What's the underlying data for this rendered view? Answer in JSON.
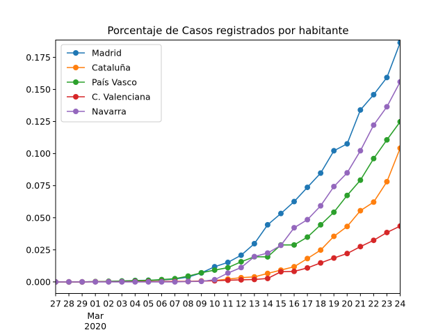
{
  "chart_data": {
    "type": "line",
    "title": "Porcentaje de Casos registrados por habitante",
    "xlabel": "",
    "ylabel": "",
    "x": [
      "2020-02-27",
      "2020-02-28",
      "2020-02-29",
      "2020-03-01",
      "2020-03-02",
      "2020-03-03",
      "2020-03-04",
      "2020-03-05",
      "2020-03-06",
      "2020-03-07",
      "2020-03-08",
      "2020-03-09",
      "2020-03-10",
      "2020-03-11",
      "2020-03-12",
      "2020-03-13",
      "2020-03-14",
      "2020-03-15",
      "2020-03-16",
      "2020-03-17",
      "2020-03-18",
      "2020-03-19",
      "2020-03-20",
      "2020-03-21",
      "2020-03-22",
      "2020-03-23",
      "2020-03-24"
    ],
    "x_tick_labels": [
      "27",
      "28",
      "29",
      "01",
      "02",
      "03",
      "04",
      "05",
      "06",
      "07",
      "08",
      "09",
      "10",
      "11",
      "12",
      "13",
      "14",
      "15",
      "16",
      "17",
      "18",
      "19",
      "20",
      "21",
      "22",
      "23",
      "24"
    ],
    "x_month_label": "Mar",
    "x_year_label": "2020",
    "xlim": [
      "2020-02-27",
      "2020-03-24"
    ],
    "ylim": [
      -0.009,
      0.1885
    ],
    "y_ticks": [
      0.0,
      0.025,
      0.05,
      0.075,
      0.1,
      0.125,
      0.15,
      0.175
    ],
    "y_tick_labels": [
      "0.000",
      "0.025",
      "0.050",
      "0.075",
      "0.100",
      "0.125",
      "0.150",
      "0.175"
    ],
    "legend_position": "top-left",
    "grid": false,
    "series": [
      {
        "name": "Madrid",
        "color": "#1f77b4",
        "values": [
          0.0,
          0.0,
          0.0,
          0.0002,
          0.0004,
          0.0007,
          0.0011,
          0.0013,
          0.0015,
          0.0022,
          0.0038,
          0.007,
          0.0118,
          0.0152,
          0.0208,
          0.0298,
          0.0445,
          0.0533,
          0.0626,
          0.0737,
          0.0848,
          0.1022,
          0.1076,
          0.134,
          0.1459,
          0.1593,
          0.1865
        ]
      },
      {
        "name": "Cataluña",
        "color": "#ff7f0e",
        "values": [
          0.0,
          0.0,
          0.0,
          0.0001,
          0.0002,
          0.0002,
          0.0003,
          0.0003,
          0.0003,
          0.0004,
          0.0005,
          0.0007,
          0.0011,
          0.0022,
          0.0033,
          0.0039,
          0.0066,
          0.0092,
          0.0118,
          0.0182,
          0.0248,
          0.0355,
          0.0432,
          0.0555,
          0.0622,
          0.0781,
          0.1042
        ]
      },
      {
        "name": "País Vasco",
        "color": "#2ca02c",
        "values": [
          0.0,
          0.0,
          0.0,
          0.0002,
          0.0004,
          0.0006,
          0.001,
          0.0012,
          0.0018,
          0.0025,
          0.0045,
          0.0071,
          0.0092,
          0.0111,
          0.0157,
          0.0196,
          0.0195,
          0.0288,
          0.0288,
          0.0349,
          0.0445,
          0.0543,
          0.0674,
          0.0793,
          0.0961,
          0.1107,
          0.1248
        ]
      },
      {
        "name": "C. Valenciana",
        "color": "#d62728",
        "values": [
          0.0,
          0.0,
          0.0,
          0.0001,
          0.0001,
          0.0001,
          0.0002,
          0.0002,
          0.0002,
          0.0003,
          0.0003,
          0.0006,
          0.0009,
          0.0013,
          0.0016,
          0.0019,
          0.0027,
          0.0079,
          0.0082,
          0.0109,
          0.0148,
          0.0186,
          0.0221,
          0.0275,
          0.0324,
          0.0385,
          0.0435
        ]
      },
      {
        "name": "Navarra",
        "color": "#9467bd",
        "values": [
          0.0,
          0.0,
          0.0,
          0.0,
          0.0,
          0.0,
          0.0,
          0.0,
          0.0,
          0.0,
          0.0003,
          0.0004,
          0.0017,
          0.0069,
          0.0112,
          0.0197,
          0.0225,
          0.0285,
          0.0422,
          0.0485,
          0.0593,
          0.0743,
          0.085,
          0.1022,
          0.1222,
          0.1365,
          0.1559
        ]
      }
    ]
  }
}
